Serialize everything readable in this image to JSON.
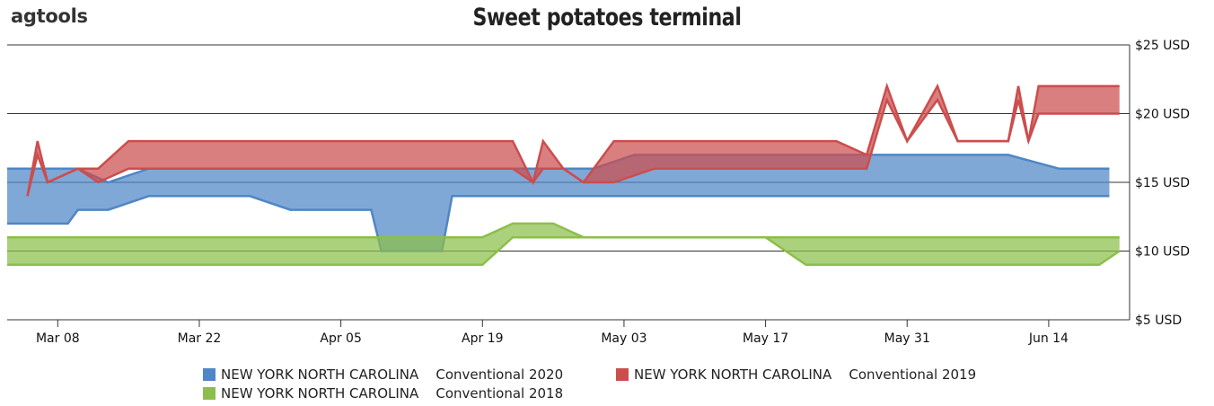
{
  "logo": {
    "text": "agtools"
  },
  "chart_data": {
    "type": "area",
    "title": "Sweet potatoes terminal",
    "y_unit": "USD",
    "ylim": [
      5,
      25
    ],
    "yticks": [
      "$5 USD",
      "$10 USD",
      "$15 USD",
      "$20 USD",
      "$25 USD"
    ],
    "yvalues": [
      5,
      10,
      15,
      20,
      25
    ],
    "xticks": [
      "Mar 08",
      "Mar 22",
      "Apr 05",
      "Apr 19",
      "May 03",
      "May 17",
      "May 31",
      "Jun 14"
    ],
    "xlim": [
      "Mar 03",
      "Jun 22"
    ],
    "grid": true,
    "legend_position": "bottom",
    "series": [
      {
        "name": "NEW YORK NORTH CAROLINA    Conventional 2020",
        "color": "#4f86c6",
        "points": [
          {
            "x": "Mar 03",
            "low": 12,
            "high": 16
          },
          {
            "x": "Mar 09",
            "low": 12,
            "high": 16
          },
          {
            "x": "Mar 10",
            "low": 13,
            "high": 16
          },
          {
            "x": "Mar 13",
            "low": 13,
            "high": 15
          },
          {
            "x": "Mar 17",
            "low": 14,
            "high": 16
          },
          {
            "x": "Mar 27",
            "low": 14,
            "high": 16
          },
          {
            "x": "Mar 31",
            "low": 13,
            "high": 16
          },
          {
            "x": "Apr 08",
            "low": 13,
            "high": 16
          },
          {
            "x": "Apr 09",
            "low": 10,
            "high": 16
          },
          {
            "x": "Apr 15",
            "low": 10,
            "high": 16
          },
          {
            "x": "Apr 16",
            "low": 14,
            "high": 16
          },
          {
            "x": "Apr 30",
            "low": 14,
            "high": 16
          },
          {
            "x": "May 04",
            "low": 14,
            "high": 17
          },
          {
            "x": "Jun 10",
            "low": 14,
            "high": 17
          },
          {
            "x": "Jun 15",
            "low": 14,
            "high": 16
          },
          {
            "x": "Jun 20",
            "low": 14,
            "high": 16
          }
        ]
      },
      {
        "name": "NEW YORK NORTH CAROLINA    Conventional 2019",
        "color": "#cc4d4d",
        "points": [
          {
            "x": "Mar 05",
            "low": 14,
            "high": 14
          },
          {
            "x": "Mar 06",
            "low": 17,
            "high": 18
          },
          {
            "x": "Mar 07",
            "low": 15,
            "high": 15
          },
          {
            "x": "Mar 10",
            "low": 16,
            "high": 16
          },
          {
            "x": "Mar 12",
            "low": 15,
            "high": 16
          },
          {
            "x": "Mar 15",
            "low": 16,
            "high": 18
          },
          {
            "x": "Apr 22",
            "low": 16,
            "high": 18
          },
          {
            "x": "Apr 24",
            "low": 15,
            "high": 15
          },
          {
            "x": "Apr 25",
            "low": 16,
            "high": 18
          },
          {
            "x": "Apr 27",
            "low": 16,
            "high": 16
          },
          {
            "x": "Apr 29",
            "low": 15,
            "high": 15
          },
          {
            "x": "May 02",
            "low": 15,
            "high": 18
          },
          {
            "x": "May 06",
            "low": 16,
            "high": 18
          },
          {
            "x": "May 24",
            "low": 16,
            "high": 18
          },
          {
            "x": "May 27",
            "low": 16,
            "high": 17
          },
          {
            "x": "May 29",
            "low": 21,
            "high": 22
          },
          {
            "x": "May 31",
            "low": 18,
            "high": 18
          },
          {
            "x": "Jun 03",
            "low": 21,
            "high": 22
          },
          {
            "x": "Jun 05",
            "low": 18,
            "high": 18
          },
          {
            "x": "Jun 10",
            "low": 18,
            "high": 18
          },
          {
            "x": "Jun 11",
            "low": 21,
            "high": 22
          },
          {
            "x": "Jun 12",
            "low": 18,
            "high": 18
          },
          {
            "x": "Jun 13",
            "low": 20,
            "high": 22
          },
          {
            "x": "Jun 21",
            "low": 20,
            "high": 22
          }
        ]
      },
      {
        "name": "NEW YORK NORTH CAROLINA    Conventional 2018",
        "color": "#8cbf4a",
        "points": [
          {
            "x": "Mar 03",
            "low": 9,
            "high": 11
          },
          {
            "x": "Apr 19",
            "low": 9,
            "high": 11
          },
          {
            "x": "Apr 22",
            "low": 11,
            "high": 12
          },
          {
            "x": "Apr 26",
            "low": 11,
            "high": 12
          },
          {
            "x": "Apr 29",
            "low": 11,
            "high": 11
          },
          {
            "x": "May 17",
            "low": 11,
            "high": 11
          },
          {
            "x": "May 21",
            "low": 9,
            "high": 11
          },
          {
            "x": "Jun 19",
            "low": 9,
            "high": 11
          },
          {
            "x": "Jun 21",
            "low": 10,
            "high": 11
          }
        ]
      }
    ]
  }
}
